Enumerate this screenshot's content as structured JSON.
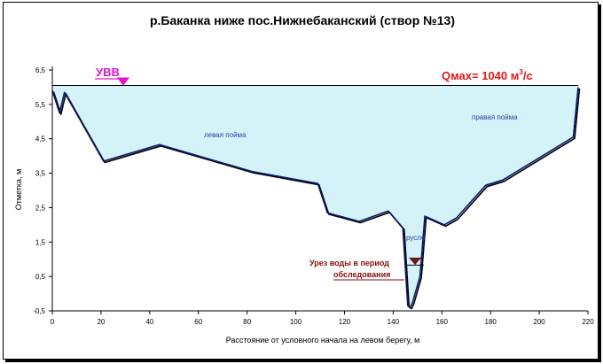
{
  "chart_data": {
    "type": "area",
    "title": "р.Баканка ниже пос.Нижнебаканский  (створ №13)",
    "xlabel": "Расстояние от условного начала на левом берегу, м",
    "ylabel": "Отметка, м",
    "xlim": [
      0,
      220
    ],
    "ylim": [
      -0.5,
      6.5
    ],
    "x_ticks": [
      "0",
      "20",
      "40",
      "60",
      "80",
      "100",
      "120",
      "140",
      "160",
      "180",
      "200",
      "220"
    ],
    "y_ticks": [
      "-0,5",
      "0,5",
      "1,5",
      "2,5",
      "3,5",
      "4,5",
      "5,5",
      "6,5"
    ],
    "water_level": 6.05,
    "profile": {
      "x": [
        0,
        3,
        5,
        21,
        44,
        82,
        109,
        113,
        126,
        138,
        144,
        146,
        147,
        148,
        151,
        153,
        161,
        166,
        178,
        185,
        214,
        216
      ],
      "y": [
        5.9,
        5.25,
        5.85,
        3.85,
        4.33,
        3.55,
        3.2,
        2.35,
        2.1,
        2.4,
        1.9,
        -0.35,
        -0.4,
        -0.25,
        0.5,
        2.25,
        2.0,
        2.2,
        3.15,
        3.3,
        4.55,
        6.0
      ]
    },
    "annotations": {
      "uvv": "УВВ",
      "qmax": "Qмах= 1040 м",
      "qmax_sup": "3",
      "qmax_tail": "/с",
      "left_floodplain": "левая пойма",
      "right_floodplain": "правая пойма",
      "channel": "русло",
      "survey_level_line1": "Урез воды в период",
      "survey_level_line2": "обследования"
    },
    "survey_level": {
      "x": 149,
      "y": 0.88
    },
    "colors": {
      "water_fill": "#d4f3f8",
      "profile_line": "#0a1a6e",
      "shadow_line": "#000000",
      "uvv_label": "#e014c8",
      "qmax_label": "#e01818",
      "floodplain_label": "#2d3e9c",
      "survey_label": "#8b0d0d",
      "marker": "#6e1a1a"
    },
    "grid": false,
    "legend": "none"
  }
}
